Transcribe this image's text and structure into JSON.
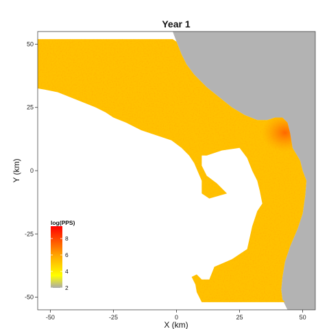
{
  "chart_data": {
    "type": "heatmap",
    "title": "Year 1",
    "xlabel": "X (km)",
    "ylabel": "Y (km)",
    "xlim": [
      -55,
      55
    ],
    "ylim": [
      -55,
      55
    ],
    "x_ticks": [
      {
        "value": -50,
        "label": "-50"
      },
      {
        "value": -25,
        "label": "-25"
      },
      {
        "value": 0,
        "label": "0"
      },
      {
        "value": 25,
        "label": "25"
      },
      {
        "value": 50,
        "label": "50"
      }
    ],
    "y_ticks": [
      {
        "value": 50,
        "label": "50"
      },
      {
        "value": 25,
        "label": "25"
      },
      {
        "value": 0,
        "label": "0"
      },
      {
        "value": -25,
        "label": "-25"
      },
      {
        "value": -50,
        "label": "-50"
      }
    ],
    "grid": false,
    "legend": {
      "title": "log(PPS)",
      "placement": "bottom-left",
      "range": [
        2,
        9.5
      ],
      "breaks": [
        {
          "value": 8,
          "label": "8"
        },
        {
          "value": 6,
          "label": "6"
        },
        {
          "value": 4,
          "label": "4"
        },
        {
          "value": 2,
          "label": "2"
        }
      ],
      "colors": [
        "#aaaaaa",
        "#ffff00",
        "#ffa500",
        "#ff0000"
      ]
    },
    "land_color": "#b3b3b3",
    "typical_value": 5.2,
    "hotspot": {
      "x": 43,
      "y": 15,
      "value": 7.3
    },
    "land_boundary": [
      [
        -1.5,
        55
      ],
      [
        0,
        51
      ],
      [
        2,
        46
      ],
      [
        4,
        42
      ],
      [
        7,
        38
      ],
      [
        12,
        33
      ],
      [
        17,
        29
      ],
      [
        22,
        25
      ],
      [
        27,
        22
      ],
      [
        32,
        20
      ],
      [
        36,
        20
      ],
      [
        39,
        21
      ],
      [
        42,
        21
      ],
      [
        44,
        19
      ],
      [
        45,
        15
      ],
      [
        46,
        9
      ],
      [
        49,
        4
      ],
      [
        50,
        0
      ],
      [
        51.5,
        -4
      ],
      [
        51,
        -10
      ],
      [
        50,
        -17
      ],
      [
        48,
        -23
      ],
      [
        45,
        -30
      ],
      [
        43,
        -36
      ],
      [
        42,
        -42
      ],
      [
        41.5,
        -47
      ],
      [
        42,
        -51
      ],
      [
        44,
        -55
      ]
    ],
    "sea_polygon": [
      [
        -55,
        52
      ],
      [
        -1.5,
        52
      ],
      [
        0,
        51
      ],
      [
        2,
        46
      ],
      [
        4,
        42
      ],
      [
        7,
        38
      ],
      [
        12,
        33
      ],
      [
        17,
        29
      ],
      [
        22,
        25
      ],
      [
        27,
        22
      ],
      [
        32,
        20
      ],
      [
        36,
        20
      ],
      [
        39,
        21
      ],
      [
        42,
        21
      ],
      [
        44,
        19
      ],
      [
        45,
        15
      ],
      [
        46,
        9
      ],
      [
        49,
        4
      ],
      [
        50,
        0
      ],
      [
        51.5,
        -4
      ],
      [
        51,
        -10
      ],
      [
        50,
        -17
      ],
      [
        48,
        -23
      ],
      [
        45,
        -30
      ],
      [
        43,
        -36
      ],
      [
        42,
        -42
      ],
      [
        41.5,
        -47
      ],
      [
        42,
        -51
      ],
      [
        43,
        -52
      ],
      [
        10,
        -52
      ],
      [
        8,
        -48
      ],
      [
        7.5,
        -45
      ],
      [
        6,
        -42
      ],
      [
        8,
        -41
      ],
      [
        10,
        -43
      ],
      [
        13,
        -43
      ],
      [
        15,
        -38
      ],
      [
        22,
        -35
      ],
      [
        28,
        -31
      ],
      [
        30,
        -22
      ],
      [
        32,
        -16
      ],
      [
        34,
        -13
      ],
      [
        33,
        -8
      ],
      [
        32,
        -4
      ],
      [
        30,
        0
      ],
      [
        28,
        5
      ],
      [
        25,
        9
      ],
      [
        18,
        8
      ],
      [
        12,
        6
      ],
      [
        10,
        6
      ],
      [
        10,
        2
      ],
      [
        12,
        -2
      ],
      [
        16,
        -5
      ],
      [
        20,
        -9
      ],
      [
        13,
        -11
      ],
      [
        10,
        -9
      ],
      [
        10,
        -4
      ],
      [
        7,
        3
      ],
      [
        5,
        6
      ],
      [
        2,
        9
      ],
      [
        -2,
        12
      ],
      [
        -8,
        14
      ],
      [
        -14,
        16
      ],
      [
        -20,
        19
      ],
      [
        -25,
        21
      ],
      [
        -28,
        23
      ],
      [
        -32,
        25
      ],
      [
        -37,
        27
      ],
      [
        -42,
        29
      ],
      [
        -47,
        31
      ],
      [
        -52,
        32
      ],
      [
        -55,
        32.5
      ]
    ]
  }
}
